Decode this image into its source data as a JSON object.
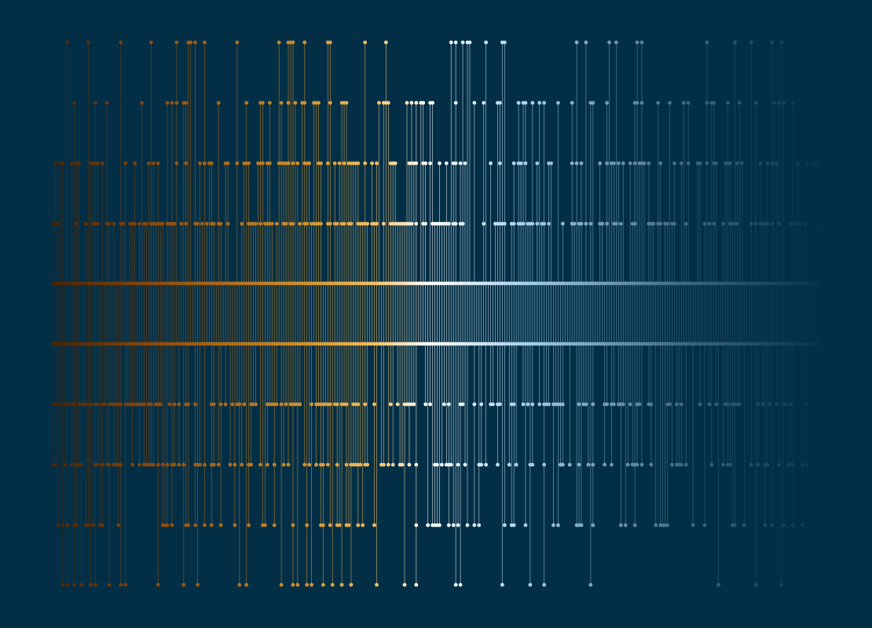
{
  "background_color": "#032f46",
  "palette": [
    "#4a2405",
    "#8e4c0e",
    "#d1912e",
    "#f5be63",
    "#ffffff",
    "#9dcbe6",
    "#3d6a86",
    "#09334c"
  ],
  "row_count": 10,
  "column_count": 330,
  "stems_connect_columns_to_bottom_dot": true,
  "seed": 20241
}
